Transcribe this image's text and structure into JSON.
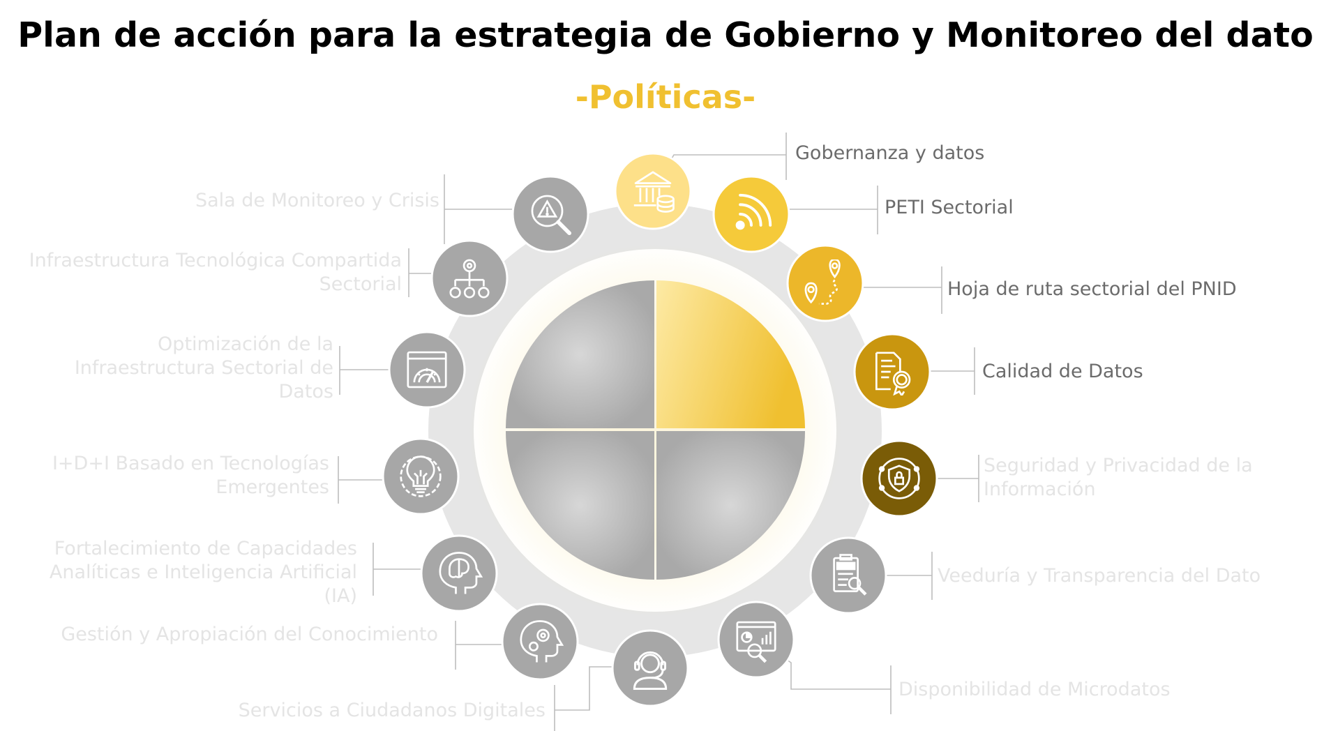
{
  "title": "Plan de acción para la estrategia de Gobierno y Monitoreo del dato",
  "subtitle": "-Políticas-",
  "colors": {
    "accent": "#f0c030",
    "active_text": "#6b6b6b",
    "inactive_text": "#e4e4e4",
    "ring": "#e6e6e6",
    "connector": "#bdbdbd",
    "inactive_node": "#a7a7a7"
  },
  "items": [
    {
      "label": "Gobernanza y datos",
      "icon": "bank-database-icon",
      "color": "#fde089",
      "active": true
    },
    {
      "label": "PETI Sectorial",
      "icon": "wireless-signal-icon",
      "color": "#f5ca3a",
      "active": true
    },
    {
      "label": "Hoja de ruta sectorial del PNID",
      "icon": "route-map-pin-icon",
      "color": "#ecb72a",
      "active": true
    },
    {
      "label": "Calidad de Datos",
      "icon": "certificate-document-icon",
      "color": "#c9960f",
      "active": true
    },
    {
      "label": "Seguridad y Privacidad de la Información",
      "icon": "security-shield-lock-icon",
      "color": "#7a5c07",
      "active": false
    },
    {
      "label": "Veeduría y Transparencia del Dato",
      "icon": "audit-document-icon",
      "color": "#a7a7a7",
      "active": false
    },
    {
      "label": "Disponibilidad de Microdatos",
      "icon": "analytics-dashboard-icon",
      "color": "#a7a7a7",
      "active": false
    },
    {
      "label": "Servicios a Ciudadanos Digitales",
      "icon": "customer-support-headset-icon",
      "color": "#a7a7a7",
      "active": false
    },
    {
      "label": "Gestión y Apropiación del Conocimiento",
      "icon": "head-gears-icon",
      "color": "#a7a7a7",
      "active": false
    },
    {
      "label": "Fortalecimiento de Capacidades Analíticas e Inteligencia Artificial (IA)",
      "icon": "head-brain-icon",
      "color": "#a7a7a7",
      "active": false
    },
    {
      "label": "I+D+I Basado en Tecnologías Emergentes",
      "icon": "lightbulb-gear-icon",
      "color": "#a7a7a7",
      "active": false
    },
    {
      "label": "Optimización de la Infraestructura Sectorial de Datos",
      "icon": "speedometer-window-icon",
      "color": "#a7a7a7",
      "active": false
    },
    {
      "label": "Infraestructura Tecnológica Compartida Sectorial",
      "icon": "network-gears-icon",
      "color": "#a7a7a7",
      "active": false
    },
    {
      "label": "Sala de Monitoreo y Crisis",
      "icon": "alert-magnifier-icon",
      "color": "#a7a7a7",
      "active": false
    }
  ]
}
